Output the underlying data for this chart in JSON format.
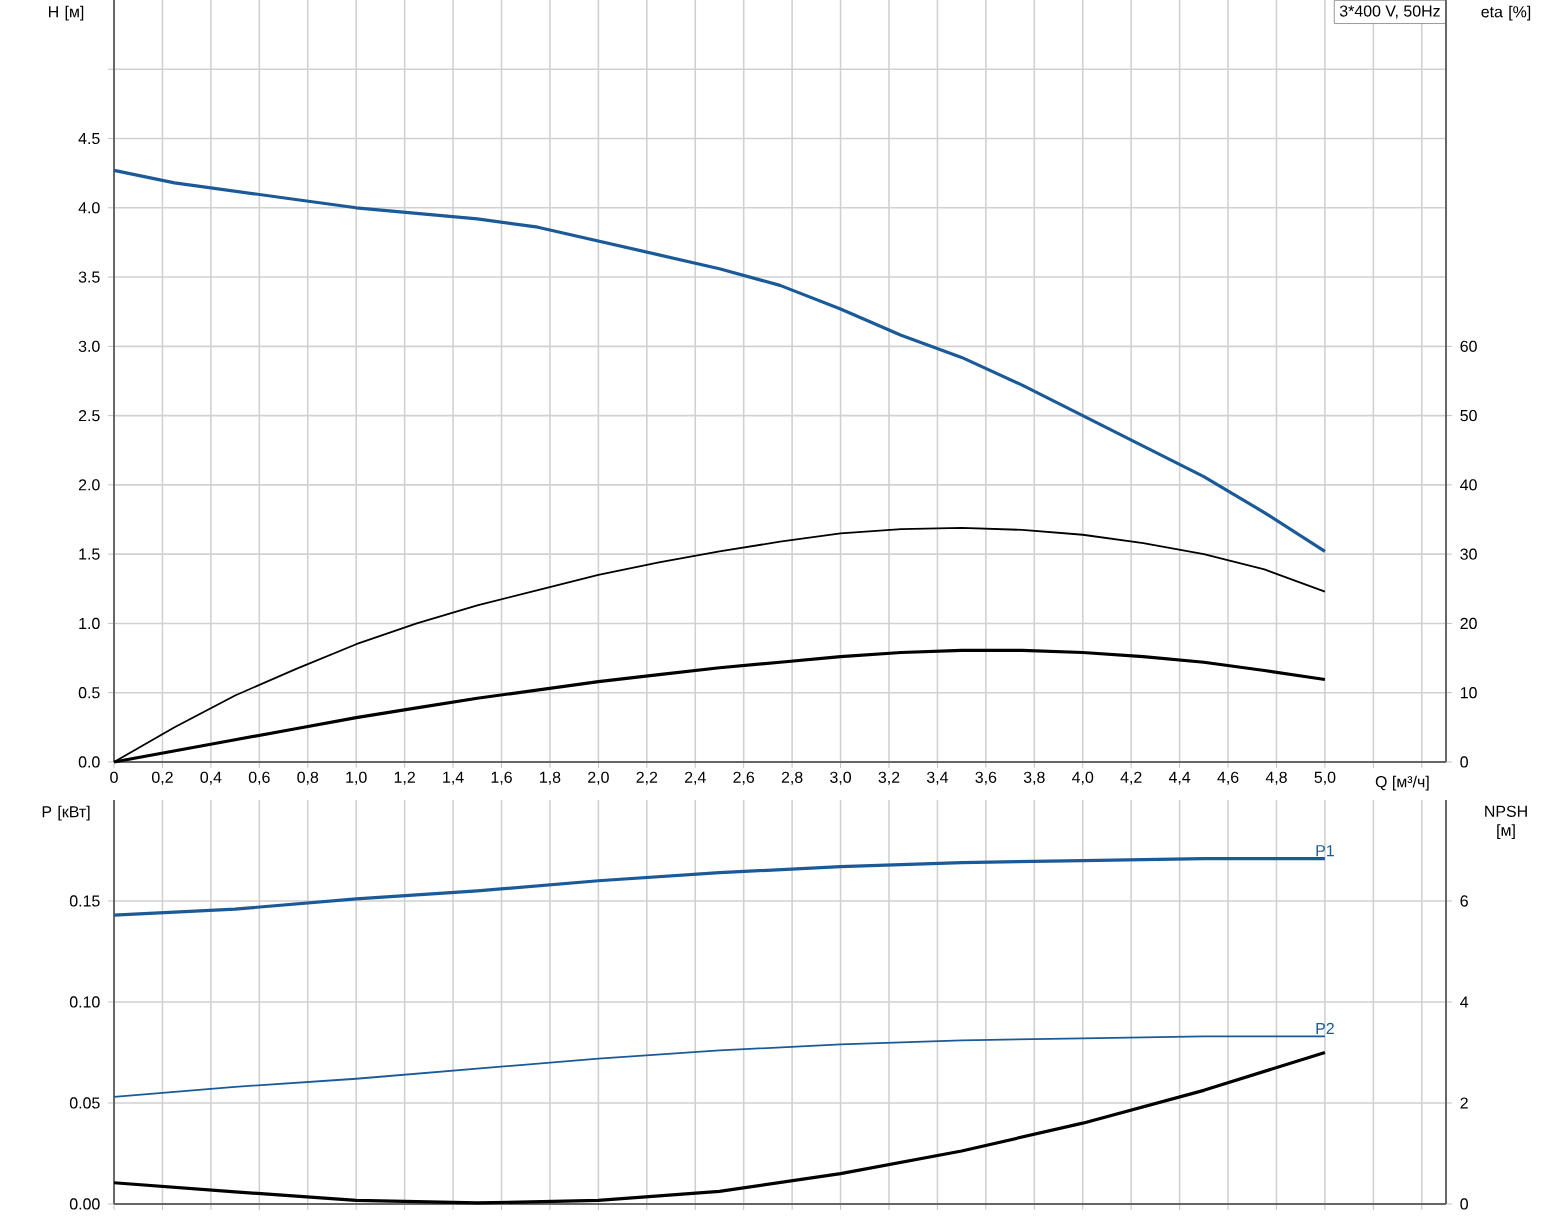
{
  "chart_data": [
    {
      "type": "line",
      "xlabel": "Q [м³/ч]",
      "ylabel": "H [м]",
      "y2label": "eta [%]",
      "annotations": [
        "3*400 V, 50Hz"
      ],
      "grid": true,
      "x": [
        0,
        0.25,
        0.5,
        0.75,
        1.0,
        1.25,
        1.5,
        1.75,
        2.0,
        2.25,
        2.5,
        2.75,
        3.0,
        3.25,
        3.5,
        3.75,
        4.0,
        4.25,
        4.5,
        4.75,
        5.0
      ],
      "xlim": [
        0,
        5.5
      ],
      "xticks": [
        0,
        {
          "value": 0.2,
          "label": "0,2"
        },
        {
          "value": 0.4,
          "label": "0,4"
        },
        {
          "value": 0.6,
          "label": "0,6"
        },
        {
          "value": 0.8,
          "label": "0,8"
        },
        {
          "value": 1.0,
          "label": "1,0"
        },
        {
          "value": 1.2,
          "label": "1,2"
        },
        {
          "value": 1.4,
          "label": "1,4"
        },
        {
          "value": 1.6,
          "label": "1,6"
        },
        {
          "value": 1.8,
          "label": "1,8"
        },
        {
          "value": 2.0,
          "label": "2,0"
        },
        {
          "value": 2.2,
          "label": "2,2"
        },
        {
          "value": 2.4,
          "label": "2,4"
        },
        {
          "value": 2.6,
          "label": "2,6"
        },
        {
          "value": 2.8,
          "label": "2,8"
        },
        {
          "value": 3.0,
          "label": "3,0"
        },
        {
          "value": 3.2,
          "label": "3,2"
        },
        {
          "value": 3.4,
          "label": "3,4"
        },
        {
          "value": 3.6,
          "label": "3,6"
        },
        {
          "value": 3.8,
          "label": "3,8"
        },
        {
          "value": 4.0,
          "label": "4,0"
        },
        {
          "value": 4.2,
          "label": "4,2"
        },
        {
          "value": 4.4,
          "label": "4,4"
        },
        {
          "value": 4.6,
          "label": "4,6"
        },
        {
          "value": 4.8,
          "label": "4,8"
        },
        {
          "value": 5.0,
          "label": "5,0"
        },
        {
          "value": 5.2,
          "label": null
        },
        {
          "value": 5.4,
          "label": null
        }
      ],
      "ylim": [
        0,
        5.5
      ],
      "yticks": [
        {
          "value": 0,
          "label": "0.0"
        },
        0.5,
        {
          "value": 1,
          "label": "1.0"
        },
        1.5,
        {
          "value": 2,
          "label": "2.0"
        },
        2.5,
        {
          "value": 3,
          "label": "3.0"
        },
        3.5,
        {
          "value": 4,
          "label": "4.0"
        },
        4.5,
        {
          "value": 5,
          "label": null
        }
      ],
      "y2lim": [
        0,
        110
      ],
      "y2ticks": [
        0,
        10,
        20,
        30,
        40,
        50,
        60
      ],
      "series": [
        {
          "color": "#1b5a98",
          "values": [
            4.27,
            4.18,
            4.12,
            4.06,
            4.0,
            3.96,
            3.92,
            3.86,
            3.76,
            3.66,
            3.56,
            3.44,
            3.27,
            3.08,
            2.92,
            2.72,
            2.5,
            2.28,
            2.06,
            1.8,
            1.52
          ]
        },
        {
          "color": "#000000",
          "axis": "y2",
          "values": [
            0,
            5.0,
            9.6,
            13.4,
            17.0,
            20.0,
            22.6,
            24.8,
            27.0,
            28.8,
            30.4,
            31.8,
            33.0,
            33.6,
            33.8,
            33.5,
            32.8,
            31.6,
            30.0,
            27.8,
            24.6
          ]
        },
        {
          "color": "#000000",
          "axis": "y2",
          "values": [
            0,
            1.6,
            3.2,
            4.8,
            6.4,
            7.8,
            9.2,
            10.4,
            11.6,
            12.6,
            13.6,
            14.4,
            15.2,
            15.8,
            16.1,
            16.1,
            15.8,
            15.2,
            14.4,
            13.2,
            11.9
          ]
        }
      ]
    },
    {
      "type": "line",
      "ylabel": "P [кВт]",
      "y2label": "NPSH [м]",
      "grid": true,
      "tick_labels": "y",
      "x": [
        0,
        0.5,
        1.0,
        1.5,
        2.0,
        2.5,
        3.0,
        3.5,
        4.0,
        4.5,
        5.0
      ],
      "xlim": [
        0,
        5.5
      ],
      "xticks": [
        0,
        0.2,
        0.4,
        0.6,
        0.8,
        1.0,
        1.2,
        1.4,
        1.6,
        1.8,
        2.0,
        2.2,
        2.4,
        2.6,
        2.8,
        3.0,
        3.2,
        3.4,
        3.6,
        3.8,
        4.0,
        4.2,
        4.4,
        4.6,
        4.8,
        5.0,
        5.2,
        5.4
      ],
      "ylim": [
        0,
        0.2
      ],
      "yticks": [
        {
          "value": 0,
          "label": "0.00"
        },
        0.05,
        {
          "value": 0.1,
          "label": "0.10"
        },
        0.15
      ],
      "y2lim": [
        0,
        8
      ],
      "y2ticks": [
        0,
        2,
        4,
        6
      ],
      "series": [
        {
          "name": "P1",
          "color": "#1b5a98",
          "values": [
            0.143,
            0.146,
            0.151,
            0.155,
            0.16,
            0.164,
            0.167,
            0.169,
            0.17,
            0.171,
            0.171
          ]
        },
        {
          "name": "P2",
          "color": "#1b5a98",
          "values": [
            0.053,
            0.058,
            0.062,
            0.067,
            0.072,
            0.076,
            0.079,
            0.081,
            0.082,
            0.083,
            0.083
          ]
        },
        {
          "color": "#000000",
          "axis": "y2",
          "values": [
            0.42,
            0.24,
            0.07,
            0.02,
            0.07,
            0.25,
            0.6,
            1.05,
            1.6,
            2.25,
            3.0
          ]
        }
      ]
    }
  ]
}
